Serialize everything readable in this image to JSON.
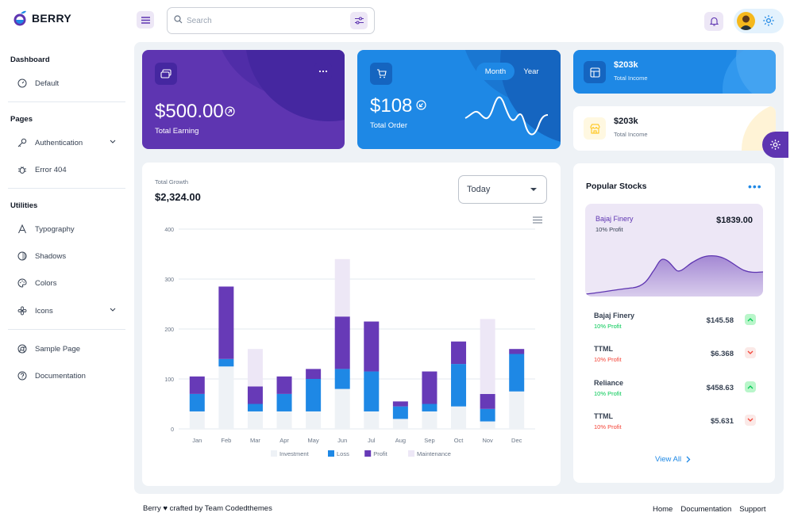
{
  "brand": {
    "name": "BERRY"
  },
  "search": {
    "placeholder": "Search"
  },
  "sidebar": {
    "sections": [
      {
        "heading": "Dashboard",
        "items": [
          {
            "label": "Default"
          }
        ]
      },
      {
        "heading": "Pages",
        "items": [
          {
            "label": "Authentication"
          },
          {
            "label": "Error 404"
          }
        ]
      },
      {
        "heading": "Utilities",
        "items": [
          {
            "label": "Typography"
          },
          {
            "label": "Shadows"
          },
          {
            "label": "Colors"
          },
          {
            "label": "Icons"
          }
        ]
      },
      {
        "heading": "",
        "items": [
          {
            "label": "Sample Page"
          },
          {
            "label": "Documentation"
          }
        ]
      }
    ]
  },
  "cards": {
    "earning": {
      "amount": "$500.00",
      "label": "Total Earning"
    },
    "order": {
      "amount": "$108",
      "label": "Total Order",
      "toggle": [
        "Month",
        "Year"
      ],
      "active": "Month"
    },
    "income_primary": {
      "amount": "$203k",
      "label": "Total Income"
    },
    "income_secondary": {
      "amount": "$203k",
      "label": "Total Income"
    }
  },
  "growth": {
    "label": "Total Growth",
    "value": "$2,324.00",
    "period": "Today"
  },
  "chart_data": {
    "type": "bar",
    "stacked": true,
    "categories": [
      "Jan",
      "Feb",
      "Mar",
      "Apr",
      "May",
      "Jun",
      "Jul",
      "Aug",
      "Sep",
      "Oct",
      "Nov",
      "Dec"
    ],
    "series": [
      {
        "name": "Investment",
        "color": "#eef2f6",
        "values": [
          35,
          125,
          35,
          35,
          35,
          80,
          35,
          20,
          35,
          45,
          15,
          75
        ]
      },
      {
        "name": "Loss",
        "color": "#1e88e5",
        "values": [
          35,
          15,
          15,
          35,
          65,
          40,
          80,
          25,
          15,
          85,
          25,
          75
        ]
      },
      {
        "name": "Profit",
        "color": "#673ab7",
        "values": [
          35,
          145,
          35,
          35,
          20,
          105,
          100,
          10,
          65,
          45,
          30,
          10
        ]
      },
      {
        "name": "Maintenance",
        "color": "#ede7f6",
        "values": [
          0,
          0,
          75,
          0,
          0,
          115,
          0,
          0,
          0,
          0,
          150,
          0
        ]
      }
    ],
    "ylim": [
      0,
      400
    ],
    "yticks": [
      0,
      100,
      200,
      300,
      400
    ],
    "legend": "bottom"
  },
  "stocks": {
    "title": "Popular Stocks",
    "hero": {
      "name": "Bajaj Finery",
      "sub": "10% Profit",
      "price": "$1839.00"
    },
    "rows": [
      {
        "name": "Bajaj Finery",
        "status": "10% Profit",
        "price": "$145.58",
        "trend": "up"
      },
      {
        "name": "TTML",
        "status": "10% Profit",
        "price": "$6.368",
        "trend": "down"
      },
      {
        "name": "Reliance",
        "status": "10% Profit",
        "price": "$458.63",
        "trend": "up"
      },
      {
        "name": "TTML",
        "status": "10% Profit",
        "price": "$5.631",
        "trend": "down"
      }
    ],
    "view_all": "View All"
  },
  "footer": {
    "credit": "Berry ♥ crafted by Team Codedthemes",
    "links": [
      "Home",
      "Documentation",
      "Support"
    ]
  },
  "colors": {
    "primary": "#5e35b1",
    "secondary": "#1e88e5",
    "success": "#00c853",
    "error": "#f44336",
    "warning": "#ffc107"
  }
}
